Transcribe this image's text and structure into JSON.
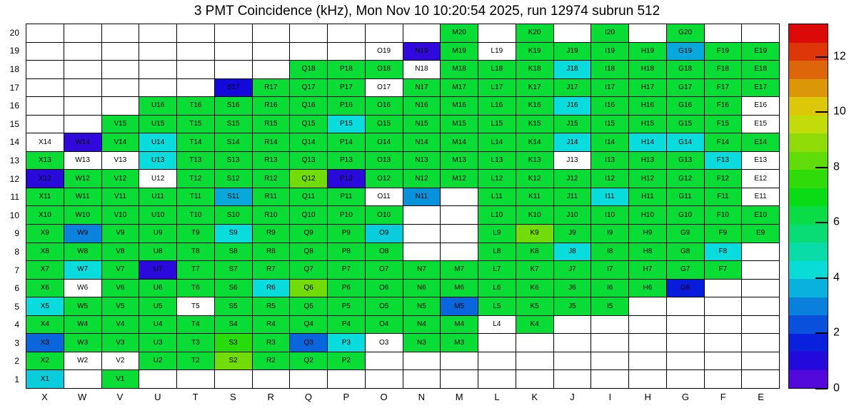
{
  "title": "3 PMT Coincidence (kHz), Mon Nov 10 10:20:54 2025, run 12974 subrun 512",
  "chart_data": {
    "type": "heatmap",
    "title": "3 PMT Coincidence (kHz), Mon Nov 10 10:20:54 2025, run 12974 subrun 512",
    "unit": "kHz",
    "columns": [
      "X",
      "W",
      "V",
      "U",
      "T",
      "S",
      "R",
      "Q",
      "P",
      "O",
      "N",
      "M",
      "L",
      "K",
      "J",
      "I",
      "H",
      "G",
      "F",
      "E"
    ],
    "row_min": 1,
    "row_max": 20,
    "value_range": [
      0,
      13.2
    ],
    "colorbar_ticks": [
      0,
      2,
      4,
      6,
      8,
      10,
      12
    ],
    "colorbar_bands": 20,
    "legend_position": "right",
    "note": "cells: [id, kHz]; null = channel shown with no value (white); missing id = no channel",
    "cells": [
      [
        "M20",
        6.5
      ],
      [
        "K20",
        6.5
      ],
      [
        "I20",
        6.5
      ],
      [
        "G20",
        6.5
      ],
      [
        "O19",
        null
      ],
      [
        "N19",
        0.8
      ],
      [
        "M19",
        6.5
      ],
      [
        "L19",
        null
      ],
      [
        "K19",
        6.5
      ],
      [
        "J19",
        6.5
      ],
      [
        "I19",
        6.5
      ],
      [
        "H19",
        6.5
      ],
      [
        "G19",
        3.5
      ],
      [
        "F19",
        6.5
      ],
      [
        "E19",
        6.5
      ],
      [
        "Q18",
        6.5
      ],
      [
        "P18",
        6.5
      ],
      [
        "O18",
        6.5
      ],
      [
        "N18",
        null
      ],
      [
        "M18",
        6.5
      ],
      [
        "L18",
        6.5
      ],
      [
        "K18",
        6.5
      ],
      [
        "J18",
        4.2
      ],
      [
        "I18",
        6.5
      ],
      [
        "H18",
        6.5
      ],
      [
        "G18",
        6.5
      ],
      [
        "F18",
        6.5
      ],
      [
        "E18",
        6.5
      ],
      [
        "S17",
        1.2
      ],
      [
        "R17",
        6.5
      ],
      [
        "Q17",
        6.5
      ],
      [
        "P17",
        6.5
      ],
      [
        "O17",
        null
      ],
      [
        "N17",
        6.5
      ],
      [
        "M17",
        6.5
      ],
      [
        "L17",
        6.5
      ],
      [
        "K17",
        6.5
      ],
      [
        "J17",
        6.5
      ],
      [
        "I17",
        6.5
      ],
      [
        "H17",
        6.5
      ],
      [
        "G17",
        6.5
      ],
      [
        "F17",
        6.5
      ],
      [
        "E17",
        6.5
      ],
      [
        "U16",
        6.5
      ],
      [
        "T16",
        6.5
      ],
      [
        "S16",
        6.5
      ],
      [
        "R16",
        6.5
      ],
      [
        "Q16",
        6.5
      ],
      [
        "P16",
        6.5
      ],
      [
        "O16",
        6.5
      ],
      [
        "N16",
        6.5
      ],
      [
        "M16",
        6.5
      ],
      [
        "L16",
        6.5
      ],
      [
        "K16",
        6.5
      ],
      [
        "J16",
        4.2
      ],
      [
        "I16",
        6.5
      ],
      [
        "H16",
        6.5
      ],
      [
        "G16",
        6.5
      ],
      [
        "F16",
        6.5
      ],
      [
        "E16",
        null
      ],
      [
        "V15",
        6.5
      ],
      [
        "U15",
        6.5
      ],
      [
        "T15",
        6.5
      ],
      [
        "S15",
        6.5
      ],
      [
        "R15",
        6.5
      ],
      [
        "Q15",
        6.5
      ],
      [
        "P15",
        4.2
      ],
      [
        "O15",
        6.5
      ],
      [
        "N15",
        6.5
      ],
      [
        "M15",
        6.5
      ],
      [
        "L15",
        6.5
      ],
      [
        "K15",
        6.5
      ],
      [
        "J15",
        6.5
      ],
      [
        "I15",
        6.5
      ],
      [
        "H15",
        6.5
      ],
      [
        "G15",
        6.5
      ],
      [
        "F15",
        6.5
      ],
      [
        "E15",
        null
      ],
      [
        "X14",
        null
      ],
      [
        "W14",
        0.8
      ],
      [
        "V14",
        6.5
      ],
      [
        "U14",
        4.2
      ],
      [
        "T14",
        6.5
      ],
      [
        "S14",
        6.5
      ],
      [
        "R14",
        6.5
      ],
      [
        "Q14",
        6.5
      ],
      [
        "P14",
        6.5
      ],
      [
        "O14",
        6.5
      ],
      [
        "N14",
        6.5
      ],
      [
        "M14",
        6.5
      ],
      [
        "L14",
        6.5
      ],
      [
        "K14",
        6.5
      ],
      [
        "J14",
        4.2
      ],
      [
        "I14",
        6.5
      ],
      [
        "H14",
        4.2
      ],
      [
        "G14",
        4.2
      ],
      [
        "F14",
        6.5
      ],
      [
        "E14",
        6.5
      ],
      [
        "X13",
        6.5
      ],
      [
        "W13",
        null
      ],
      [
        "V13",
        null
      ],
      [
        "U13",
        4.2
      ],
      [
        "T13",
        6.5
      ],
      [
        "S13",
        6.5
      ],
      [
        "R13",
        6.5
      ],
      [
        "Q13",
        6.5
      ],
      [
        "P13",
        6.5
      ],
      [
        "O13",
        6.5
      ],
      [
        "N13",
        6.5
      ],
      [
        "M13",
        6.5
      ],
      [
        "L13",
        6.5
      ],
      [
        "K13",
        6.5
      ],
      [
        "J13",
        null
      ],
      [
        "I13",
        6.5
      ],
      [
        "H13",
        6.5
      ],
      [
        "G13",
        6.5
      ],
      [
        "F13",
        4.2
      ],
      [
        "E13",
        null
      ],
      [
        "X12",
        0.9
      ],
      [
        "W12",
        6.5
      ],
      [
        "V12",
        6.5
      ],
      [
        "U12",
        null
      ],
      [
        "T12",
        6.5
      ],
      [
        "S12",
        6.5
      ],
      [
        "R12",
        6.5
      ],
      [
        "Q12",
        8.5
      ],
      [
        "P12",
        0.9
      ],
      [
        "O12",
        6.5
      ],
      [
        "N12",
        6.5
      ],
      [
        "M12",
        6.5
      ],
      [
        "L12",
        6.5
      ],
      [
        "K12",
        6.5
      ],
      [
        "J12",
        6.5
      ],
      [
        "I12",
        6.5
      ],
      [
        "H12",
        6.5
      ],
      [
        "G12",
        6.5
      ],
      [
        "F12",
        6.5
      ],
      [
        "E12",
        null
      ],
      [
        "X11",
        6.5
      ],
      [
        "W11",
        6.5
      ],
      [
        "V11",
        6.5
      ],
      [
        "U11",
        6.5
      ],
      [
        "T11",
        6.5
      ],
      [
        "S11",
        3.5
      ],
      [
        "R11",
        6.5
      ],
      [
        "Q11",
        6.5
      ],
      [
        "P11",
        6.5
      ],
      [
        "O11",
        null
      ],
      [
        "N11",
        3.2
      ],
      [
        "L11",
        6.5
      ],
      [
        "K11",
        6.5
      ],
      [
        "J11",
        6.5
      ],
      [
        "I11",
        4.2
      ],
      [
        "H11",
        6.5
      ],
      [
        "G11",
        6.5
      ],
      [
        "F11",
        6.5
      ],
      [
        "E11",
        null
      ],
      [
        "X10",
        6.5
      ],
      [
        "W10",
        6.5
      ],
      [
        "V10",
        6.5
      ],
      [
        "U10",
        6.5
      ],
      [
        "T10",
        6.5
      ],
      [
        "S10",
        6.5
      ],
      [
        "R10",
        6.5
      ],
      [
        "Q10",
        6.5
      ],
      [
        "P10",
        6.5
      ],
      [
        "O10",
        6.5
      ],
      [
        "L10",
        6.5
      ],
      [
        "K10",
        6.5
      ],
      [
        "J10",
        6.5
      ],
      [
        "I10",
        6.5
      ],
      [
        "H10",
        6.5
      ],
      [
        "G10",
        6.5
      ],
      [
        "F10",
        6.5
      ],
      [
        "E10",
        6.5
      ],
      [
        "X9",
        6.5
      ],
      [
        "W9",
        3.0
      ],
      [
        "V9",
        6.5
      ],
      [
        "U9",
        6.5
      ],
      [
        "T9",
        6.5
      ],
      [
        "S9",
        4.2
      ],
      [
        "R9",
        6.5
      ],
      [
        "Q9",
        6.5
      ],
      [
        "P9",
        6.5
      ],
      [
        "O9",
        4.0
      ],
      [
        "L9",
        6.5
      ],
      [
        "K9",
        8.5
      ],
      [
        "J9",
        6.5
      ],
      [
        "I9",
        6.5
      ],
      [
        "H9",
        6.5
      ],
      [
        "G9",
        6.5
      ],
      [
        "F9",
        6.5
      ],
      [
        "E9",
        6.5
      ],
      [
        "X8",
        6.5
      ],
      [
        "W8",
        6.5
      ],
      [
        "V8",
        6.5
      ],
      [
        "U8",
        6.5
      ],
      [
        "T8",
        6.5
      ],
      [
        "S8",
        6.5
      ],
      [
        "R8",
        6.5
      ],
      [
        "Q8",
        6.5
      ],
      [
        "P8",
        6.5
      ],
      [
        "O8",
        6.5
      ],
      [
        "L8",
        6.5
      ],
      [
        "K8",
        6.5
      ],
      [
        "J8",
        4.2
      ],
      [
        "I8",
        6.5
      ],
      [
        "H8",
        6.5
      ],
      [
        "G8",
        6.5
      ],
      [
        "F8",
        4.2
      ],
      [
        "X7",
        6.5
      ],
      [
        "W7",
        4.2
      ],
      [
        "V7",
        6.5
      ],
      [
        "U7",
        0.9
      ],
      [
        "T7",
        6.5
      ],
      [
        "S7",
        6.5
      ],
      [
        "R7",
        6.5
      ],
      [
        "Q7",
        6.5
      ],
      [
        "P7",
        6.5
      ],
      [
        "O7",
        6.5
      ],
      [
        "N7",
        6.5
      ],
      [
        "M7",
        6.5
      ],
      [
        "L7",
        6.5
      ],
      [
        "K7",
        6.5
      ],
      [
        "J7",
        6.5
      ],
      [
        "I7",
        6.5
      ],
      [
        "H7",
        6.5
      ],
      [
        "G7",
        6.5
      ],
      [
        "F7",
        6.5
      ],
      [
        "X6",
        6.5
      ],
      [
        "W6",
        null
      ],
      [
        "V6",
        6.5
      ],
      [
        "U6",
        6.5
      ],
      [
        "T6",
        6.5
      ],
      [
        "S6",
        6.5
      ],
      [
        "R6",
        4.2
      ],
      [
        "Q6",
        8.5
      ],
      [
        "P6",
        6.5
      ],
      [
        "O6",
        6.5
      ],
      [
        "N6",
        6.5
      ],
      [
        "M6",
        6.5
      ],
      [
        "L6",
        6.5
      ],
      [
        "K6",
        6.5
      ],
      [
        "J6",
        6.5
      ],
      [
        "I6",
        6.5
      ],
      [
        "H6",
        6.5
      ],
      [
        "G6",
        1.6
      ],
      [
        "X5",
        4.2
      ],
      [
        "W5",
        6.5
      ],
      [
        "V5",
        6.5
      ],
      [
        "U5",
        6.5
      ],
      [
        "T5",
        null
      ],
      [
        "S5",
        6.5
      ],
      [
        "R5",
        6.5
      ],
      [
        "Q5",
        6.5
      ],
      [
        "P5",
        6.5
      ],
      [
        "O5",
        6.5
      ],
      [
        "N5",
        6.5
      ],
      [
        "M5",
        2.6
      ],
      [
        "L5",
        6.5
      ],
      [
        "K5",
        6.5
      ],
      [
        "J5",
        6.5
      ],
      [
        "I5",
        6.5
      ],
      [
        "X4",
        6.5
      ],
      [
        "W4",
        6.5
      ],
      [
        "V4",
        6.5
      ],
      [
        "U4",
        6.5
      ],
      [
        "T4",
        6.5
      ],
      [
        "S4",
        6.5
      ],
      [
        "R4",
        6.5
      ],
      [
        "Q4",
        6.5
      ],
      [
        "P4",
        6.5
      ],
      [
        "O4",
        6.5
      ],
      [
        "N4",
        6.5
      ],
      [
        "M4",
        6.5
      ],
      [
        "L4",
        null
      ],
      [
        "K4",
        6.5
      ],
      [
        "X3",
        2.6
      ],
      [
        "W3",
        6.5
      ],
      [
        "V3",
        6.5
      ],
      [
        "U3",
        6.5
      ],
      [
        "T3",
        6.5
      ],
      [
        "S3",
        7.5
      ],
      [
        "R3",
        6.5
      ],
      [
        "Q3",
        2.6
      ],
      [
        "P3",
        4.2
      ],
      [
        "O3",
        null
      ],
      [
        "N3",
        6.5
      ],
      [
        "M3",
        6.5
      ],
      [
        "X2",
        6.5
      ],
      [
        "W2",
        null
      ],
      [
        "V2",
        null
      ],
      [
        "U2",
        6.5
      ],
      [
        "T2",
        6.5
      ],
      [
        "S2",
        8.5
      ],
      [
        "R2",
        6.5
      ],
      [
        "Q2",
        6.5
      ],
      [
        "P2",
        6.5
      ],
      [
        "X1",
        4.0
      ],
      [
        "V1",
        6.5
      ]
    ]
  }
}
